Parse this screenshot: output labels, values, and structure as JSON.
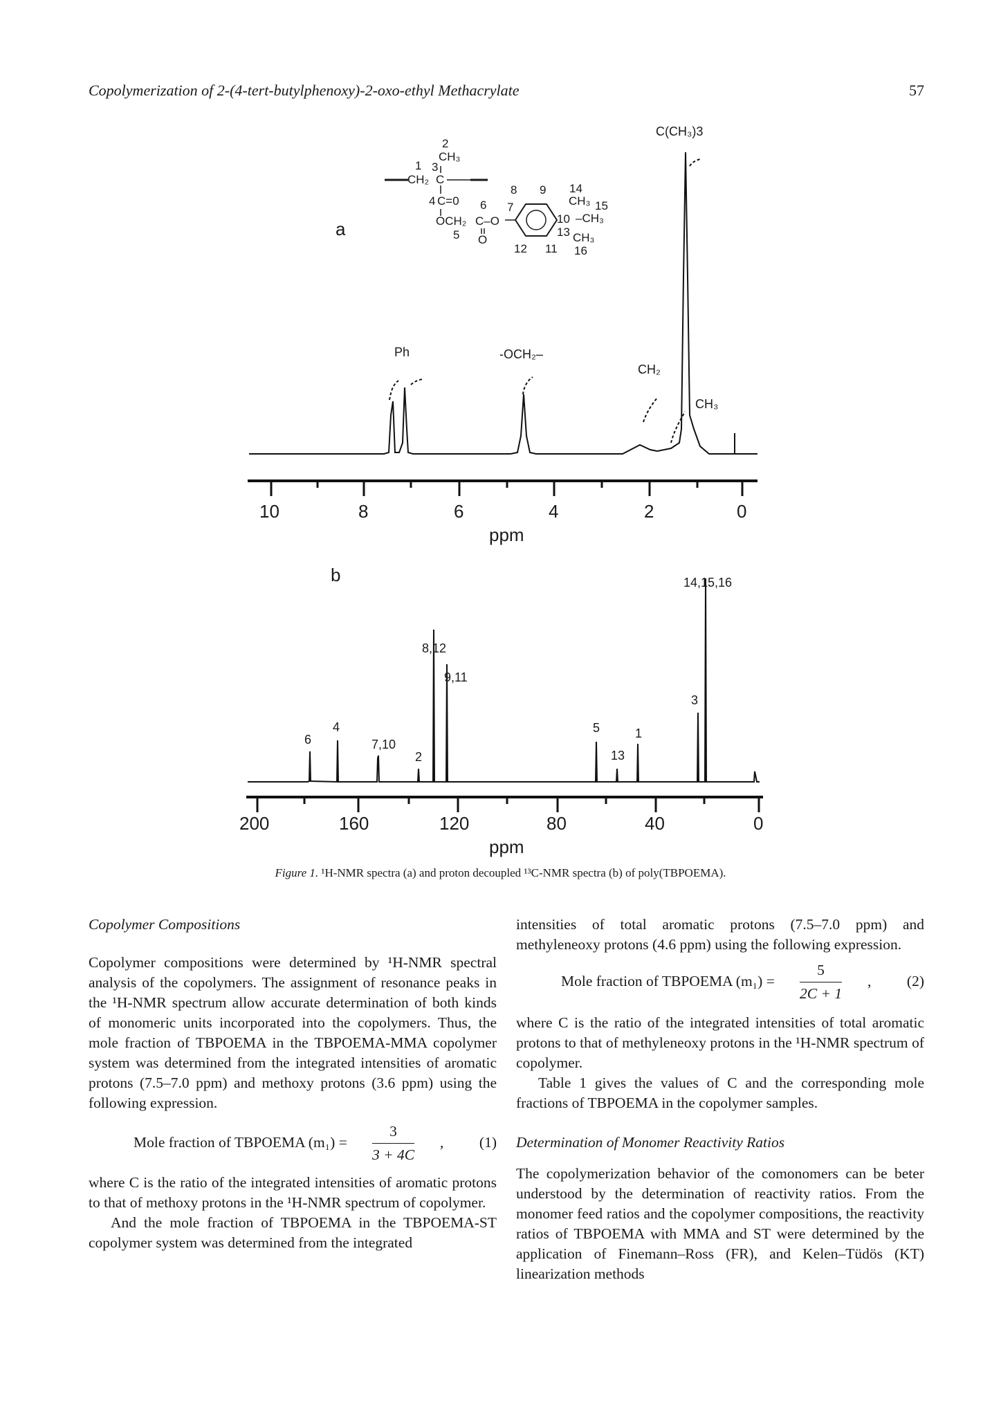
{
  "header": {
    "running_title": "Copolymerization of 2-(4-tert-butylphenoxy)-2-oxo-ethyl Methacrylate",
    "page_number": "57"
  },
  "figure": {
    "panel_a": {
      "label": "a",
      "xlabel": "ppm",
      "ticks": [
        "10",
        "8",
        "6",
        "4",
        "2",
        "0"
      ],
      "peak_labels": [
        "Ph",
        "-OCH₂–",
        "CH₂",
        "CH₃",
        "C(CH₃)3"
      ]
    },
    "panel_b": {
      "label": "b",
      "xlabel": "ppm",
      "ticks": [
        "200",
        "160",
        "120",
        "80",
        "40",
        "0"
      ],
      "peak_labels": [
        "6",
        "4",
        "7,10",
        "2",
        "8,12",
        "9,11",
        "5",
        "13",
        "1",
        "3",
        "14,15,16"
      ]
    },
    "structure_labels": [
      "1",
      "2",
      "3",
      "4",
      "5",
      "6",
      "7",
      "8",
      "9",
      "10",
      "11",
      "12",
      "13",
      "14",
      "15",
      "16",
      "CH₃",
      "CH₂",
      "C",
      "C=0",
      "O",
      "OCH₂",
      "C–O",
      "–CH₃",
      "CH₃"
    ],
    "caption": {
      "label": "Figure 1.",
      "text": " ¹H-NMR spectra (a) and proton decoupled ¹³C-NMR spectra (b) of poly(TBPOEMA)."
    }
  },
  "left_column": {
    "heading": "Copolymer Compositions",
    "p1": "Copolymer compositions were determined by ¹H-NMR spectral analysis of the copolymers. The assignment of resonance peaks in the ¹H-NMR spectrum allow accurate determination of both kinds of monomeric units incorporated into the copolymers. Thus, the mole fraction of TBPOEMA in the TBPOEMA-MMA copolymer system was determined from the integrated intensities of aromatic protons (7.5–7.0 ppm) and methoxy protons (3.6 ppm) using the following expression.",
    "eq1": {
      "lhs": "Mole fraction of TBPOEMA (m₁) =",
      "num": "3",
      "den": "3 + 4C",
      "tail": ",",
      "number": "(1)"
    },
    "p2": "where C is the ratio of the integrated intensities of aromatic protons to that of methoxy protons in the ¹H-NMR spectrum of copolymer.",
    "p3": "And the mole fraction of TBPOEMA in the TBPOEMA-ST copolymer system was determined from the integrated"
  },
  "right_column": {
    "p1": "intensities of total aromatic protons (7.5–7.0 ppm) and methyleneoxy protons (4.6 ppm) using the following expression.",
    "eq2": {
      "lhs": "Mole fraction of TBPOEMA (m₁) =",
      "num": "5",
      "den": "2C + 1",
      "tail": ",",
      "number": "(2)"
    },
    "p2": "where C is the ratio of the integrated intensities of total aromatic protons to that of methyleneoxy protons in the ¹H-NMR spectrum of copolymer.",
    "p3": "Table 1 gives the values of C and the corresponding mole fractions of TBPOEMA in the copolymer samples.",
    "heading": "Determination of Monomer Reactivity Ratios",
    "p4": "The copolymerization behavior of the comonomers can be beter understood by the determination of reactivity ratios. From the monomer feed ratios and the copolymer compositions, the reactivity ratios of TBPOEMA with MMA and ST were determined by the application of Finemann–Ross (FR), and Kelen–Tüdös (KT) linearization methods"
  }
}
